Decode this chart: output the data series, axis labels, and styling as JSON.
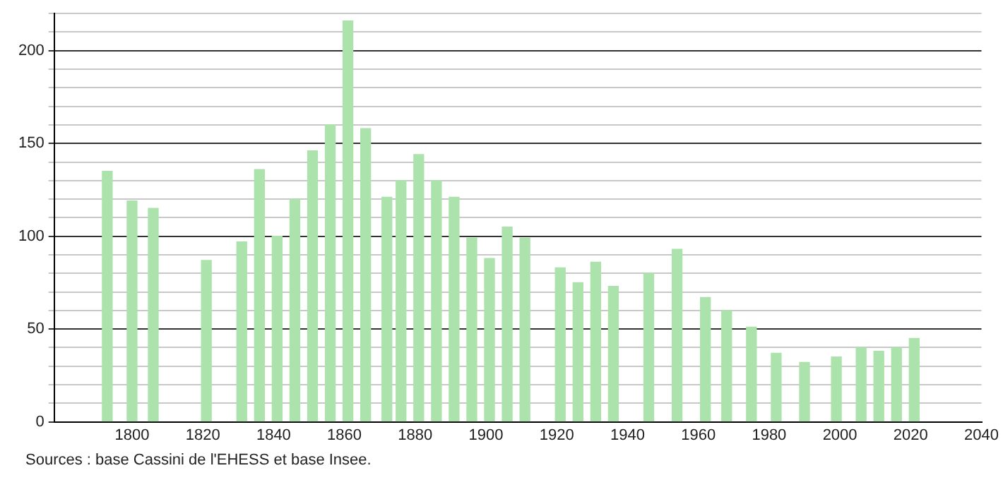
{
  "chart_data": {
    "type": "bar",
    "x": [
      1793,
      1800,
      1806,
      1821,
      1831,
      1836,
      1841,
      1846,
      1851,
      1856,
      1861,
      1866,
      1872,
      1876,
      1881,
      1886,
      1891,
      1896,
      1901,
      1906,
      1911,
      1921,
      1926,
      1931,
      1936,
      1946,
      1954,
      1962,
      1968,
      1975,
      1982,
      1990,
      1999,
      2006,
      2011,
      2016,
      2021
    ],
    "values": [
      135,
      119,
      115,
      87,
      97,
      136,
      100,
      120,
      146,
      160,
      216,
      158,
      121,
      130,
      144,
      130,
      121,
      99,
      88,
      105,
      99,
      83,
      75,
      86,
      73,
      80,
      93,
      67,
      60,
      51,
      37,
      32,
      35,
      40,
      38,
      40,
      45
    ],
    "color": "#ace3ac",
    "xlim": [
      1778,
      2040
    ],
    "xticks": [
      1800,
      1820,
      1840,
      1860,
      1880,
      1900,
      1920,
      1940,
      1960,
      1980,
      2000,
      2020,
      2040
    ],
    "ylim": [
      0,
      220
    ],
    "yticks": [
      0,
      {
        "value": 10,
        "label": null
      },
      {
        "value": 20,
        "label": null
      },
      {
        "value": 30,
        "label": null
      },
      {
        "value": 40,
        "label": null
      },
      50,
      {
        "value": 60,
        "label": null
      },
      {
        "value": 70,
        "label": null
      },
      {
        "value": 80,
        "label": null
      },
      {
        "value": 90,
        "label": null
      },
      100,
      {
        "value": 110,
        "label": null
      },
      {
        "value": 120,
        "label": null
      },
      {
        "value": 130,
        "label": null
      },
      {
        "value": 140,
        "label": null
      },
      150,
      {
        "value": 160,
        "label": null
      },
      {
        "value": 170,
        "label": null
      },
      {
        "value": 180,
        "label": null
      },
      {
        "value": 190,
        "label": null
      },
      200,
      {
        "value": 210,
        "label": null
      },
      {
        "value": 220,
        "label": null
      }
    ],
    "grid": "y",
    "legend": false,
    "annotations": [
      "Sources : base Cassini de l'EHESS et base Insee."
    ]
  }
}
